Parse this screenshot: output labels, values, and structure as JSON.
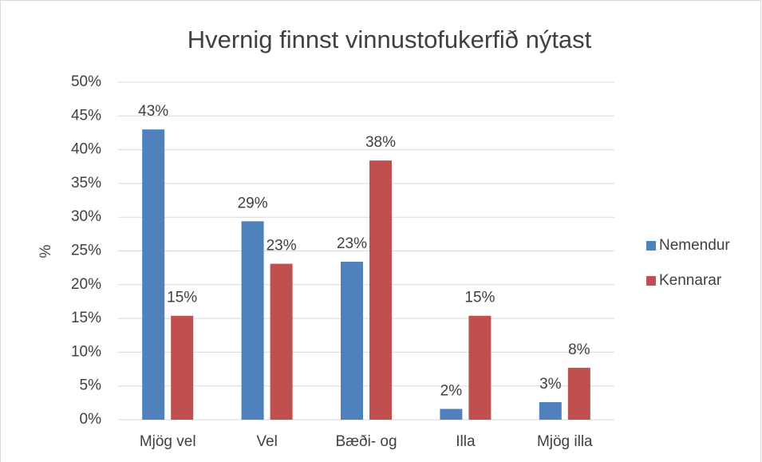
{
  "chart_data": {
    "type": "bar",
    "title": "Hvernig finnst vinnustofukerfið nýtast",
    "y_label": "%",
    "categories": [
      "Mjög vel",
      "Vel",
      "Bæði- og",
      "Illa",
      "Mjög illa"
    ],
    "series": [
      {
        "name": "Nemendur",
        "color": "#4f81bd",
        "values": [
          43,
          29.4,
          23.4,
          1.6,
          2.6
        ],
        "value_labels": [
          "43%",
          "29%",
          "23%",
          "2%",
          "3%"
        ]
      },
      {
        "name": "Kennarar",
        "color": "#c0504d",
        "values": [
          15.4,
          23.1,
          38.4,
          15.4,
          7.7
        ],
        "value_labels": [
          "15%",
          "23%",
          "38%",
          "15%",
          "8%"
        ]
      }
    ],
    "ylim": [
      0,
      50
    ],
    "yticks": [
      {
        "value": 0,
        "label": "0%"
      },
      {
        "value": 5,
        "label": "5%"
      },
      {
        "value": 10,
        "label": "10%"
      },
      {
        "value": 15,
        "label": "15%"
      },
      {
        "value": 20,
        "label": "20%"
      },
      {
        "value": 25,
        "label": "25%"
      },
      {
        "value": 30,
        "label": "30%"
      },
      {
        "value": 35,
        "label": "35%"
      },
      {
        "value": 40,
        "label": "40%"
      },
      {
        "value": 45,
        "label": "45%"
      },
      {
        "value": 50,
        "label": "50%"
      }
    ],
    "grid": true,
    "legend": "right"
  }
}
